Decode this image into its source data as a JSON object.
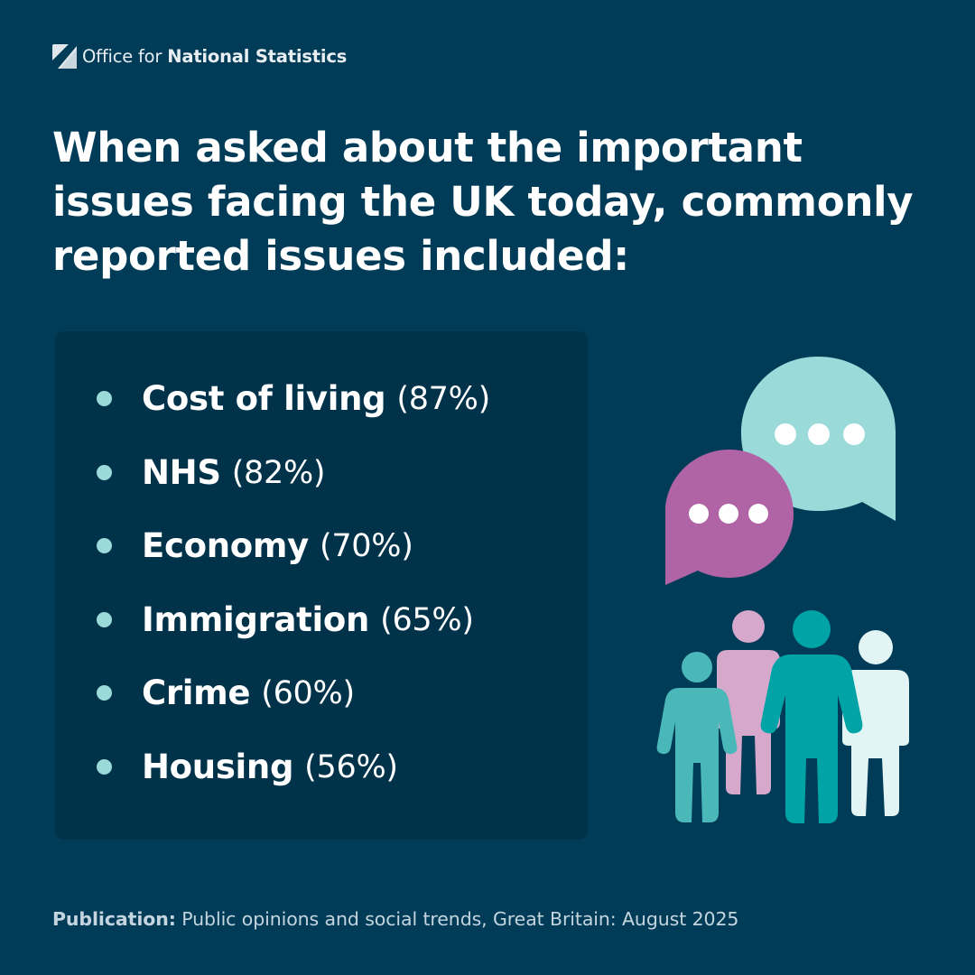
{
  "header": {
    "logo_prefix": "Office for",
    "logo_name": "National Statistics",
    "logo_icon": "ons-logo-icon"
  },
  "headline": "When asked about the important issues facing the UK today, commonly reported issues included:",
  "issues": [
    {
      "label": "Cost of living",
      "value": "(87%)"
    },
    {
      "label": "NHS",
      "value": "(82%)"
    },
    {
      "label": "Economy",
      "value": "(70%)"
    },
    {
      "label": "Immigration",
      "value": "(65%)"
    },
    {
      "label": "Crime",
      "value": "(60%)"
    },
    {
      "label": "Housing",
      "value": "(56%)"
    }
  ],
  "illustration": {
    "icons": [
      "speech-bubble-icon",
      "people-group-icon"
    ]
  },
  "source": {
    "label": "Publication:",
    "text": "Public opinions and social trends, Great Britain: August 2025"
  },
  "colors": {
    "background": "#003c57",
    "panel": "#00324a",
    "bullet": "#9adad9",
    "bubble_teal": "#9adad9",
    "bubble_purple": "#b064a5",
    "person_teal": "#4ab8b8",
    "person_pink": "#d5a8cc",
    "person_dark_teal": "#00a3a6",
    "person_pale": "#e3f4f4"
  }
}
